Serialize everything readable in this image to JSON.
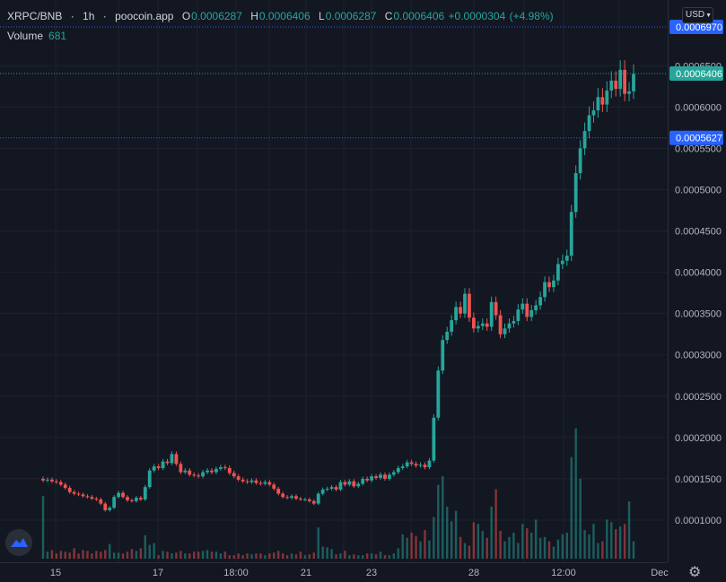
{
  "header": {
    "symbol": "XRPC/BNB",
    "sep1": "·",
    "interval": "1h",
    "sep2": "·",
    "source": "poocoin.app",
    "open_label": "O",
    "open": "0.0006287",
    "high_label": "H",
    "high": "0.0006406",
    "low_label": "L",
    "low": "0.0006287",
    "close_label": "C",
    "close": "0.0006406",
    "change": "+0.0000304",
    "change_pct": "(+4.98%)"
  },
  "volume": {
    "label": "Volume",
    "value": "681"
  },
  "currency": {
    "label": "USD",
    "chevron": "chevron-down-icon"
  },
  "icons": {
    "logo": "tradingview-logo-icon",
    "settings": "gear-icon"
  },
  "colors": {
    "background": "#131722",
    "up": "#26a69a",
    "down": "#ef5350",
    "price_line": "#26a69a",
    "marker_line": "#2962ff"
  },
  "chart_data": {
    "type": "candlestick",
    "title": "",
    "xlabel": "",
    "ylabel": "",
    "ylim": [
      5e-05,
      0.0007
    ],
    "y_ticks": [
      "0.0001000",
      "0.0001500",
      "0.0002000",
      "0.0002500",
      "0.0003000",
      "0.0003500",
      "0.0004000",
      "0.0004500",
      "0.0005000",
      "0.0005500",
      "0.0006000",
      "0.0006500"
    ],
    "x_ticks": [
      "15",
      "17",
      "18:00",
      "21",
      "23",
      "28",
      "12:00",
      "Dec"
    ],
    "grid": true,
    "price_labels": [
      {
        "value": "0.0006970",
        "style": "marker"
      },
      {
        "value": "0.0006406",
        "style": "last-price"
      },
      {
        "value": "0.0005627",
        "style": "marker"
      }
    ],
    "closes": [
      0.000148,
      0.000149,
      0.000147,
      0.000146,
      0.000143,
      0.000139,
      0.000134,
      0.000132,
      0.000131,
      0.000129,
      0.000128,
      0.000126,
      0.000125,
      0.00012,
      0.000112,
      0.000115,
      0.000128,
      0.000133,
      0.000128,
      0.000124,
      0.000123,
      0.000127,
      0.000125,
      0.00014,
      0.00016,
      0.000165,
      0.000163,
      0.000171,
      0.000169,
      0.00018,
      0.000168,
      0.000158,
      0.00016,
      0.000155,
      0.000154,
      0.000153,
      0.000158,
      0.00016,
      0.000158,
      0.000162,
      0.000164,
      0.000163,
      0.000157,
      0.000153,
      0.000149,
      0.000147,
      0.000146,
      0.000148,
      0.000145,
      0.000144,
      0.000146,
      0.000143,
      0.000138,
      0.000132,
      0.000128,
      0.000127,
      0.000129,
      0.000126,
      0.000125,
      0.000125,
      0.000123,
      0.00012,
      0.000132,
      0.000137,
      0.000138,
      0.00014,
      0.000137,
      0.000146,
      0.000143,
      0.000147,
      0.000141,
      0.000144,
      0.00015,
      0.000148,
      0.000153,
      0.000151,
      0.000155,
      0.00015,
      0.000155,
      0.000158,
      0.000163,
      0.000165,
      0.00017,
      0.000168,
      0.000166,
      0.000167,
      0.000164,
      0.000172,
      0.000224,
      0.000281,
      0.000318,
      0.000328,
      0.000342,
      0.000358,
      0.00035,
      0.000374,
      0.000345,
      0.000332,
      0.000335,
      0.000338,
      0.000334,
      0.000364,
      0.000348,
      0.000325,
      0.000332,
      0.000338,
      0.000341,
      0.000355,
      0.000362,
      0.000346,
      0.000354,
      0.00036,
      0.00037,
      0.000388,
      0.000382,
      0.00039,
      0.00041,
      0.000414,
      0.00042,
      0.000473,
      0.00052,
      0.00055,
      0.000571,
      0.00059,
      0.000596,
      0.000612,
      0.000603,
      0.00062,
      0.000632,
      0.000622,
      0.000645,
      0.000616,
      0.000619,
      0.00064
    ],
    "volumes": [
      72,
      8,
      10,
      6,
      9,
      8,
      7,
      12,
      6,
      10,
      9,
      6,
      9,
      8,
      10,
      17,
      7,
      7,
      6,
      8,
      11,
      9,
      12,
      27,
      16,
      18,
      4,
      9,
      8,
      6,
      7,
      9,
      6,
      6,
      8,
      8,
      9,
      10,
      8,
      8,
      6,
      8,
      4,
      4,
      6,
      4,
      6,
      5,
      6,
      6,
      4,
      6,
      7,
      9,
      6,
      4,
      6,
      5,
      8,
      4,
      5,
      7,
      36,
      14,
      13,
      11,
      5,
      6,
      9,
      4,
      5,
      4,
      4,
      6,
      6,
      5,
      8,
      4,
      4,
      6,
      12,
      28,
      24,
      30,
      26,
      20,
      33,
      21,
      48,
      85,
      95,
      60,
      43,
      55,
      25,
      18,
      15,
      42,
      40,
      32,
      24,
      60,
      80,
      32,
      20,
      25,
      30,
      18,
      40,
      35,
      30,
      45,
      24,
      25,
      20,
      14,
      22,
      28,
      30,
      117,
      150,
      92,
      33,
      28,
      40,
      18,
      20,
      45,
      42,
      34,
      37,
      40,
      66,
      20
    ]
  }
}
